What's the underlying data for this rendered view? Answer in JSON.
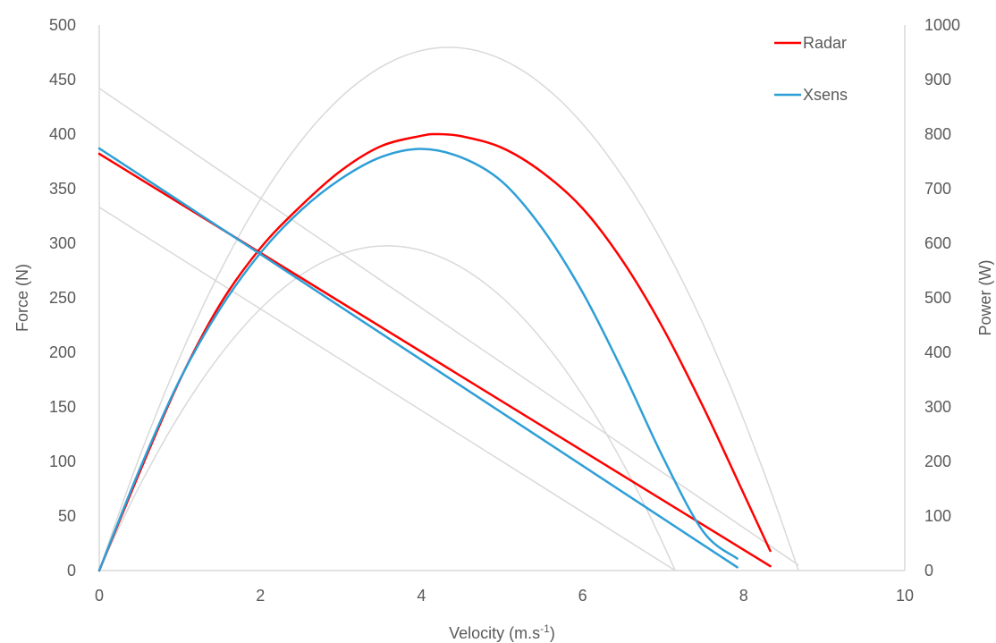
{
  "chart_data": {
    "type": "line",
    "title": "",
    "xlabel": "Velocity (m.s",
    "xlabel_sup": "-1",
    "xlabel_close": ")",
    "ylabel": "Force (N)",
    "y2label": "Power (W)",
    "xlim": [
      0,
      10
    ],
    "ylim": [
      0,
      500
    ],
    "y2lim": [
      0,
      1000
    ],
    "x_ticks": [
      "0",
      "2",
      "4",
      "6",
      "8",
      "10"
    ],
    "y_ticks": [
      "0",
      "50",
      "100",
      "150",
      "200",
      "250",
      "300",
      "350",
      "400",
      "450",
      "500"
    ],
    "y2_ticks": [
      "0",
      "100",
      "200",
      "300",
      "400",
      "500",
      "600",
      "700",
      "800",
      "900",
      "1000"
    ],
    "grid": false,
    "legend_position": "top-right",
    "colors": {
      "radar": "#ff0000",
      "xsens": "#2e9fd6",
      "reference": "#d9d9d9",
      "axis": "#d9d9d9",
      "text": "#595959"
    },
    "series": [
      {
        "name": "Radar",
        "kind": "force",
        "axis": "left",
        "color": "#ff0000",
        "x": [
          0,
          8.33
        ],
        "y": [
          382,
          4
        ]
      },
      {
        "name": "Radar",
        "kind": "power",
        "axis": "right",
        "color": "#ff0000",
        "x": [
          0,
          0.5,
          1,
          1.5,
          2,
          2.5,
          3,
          3.5,
          4,
          4.2,
          4.5,
          5,
          5.5,
          6,
          6.5,
          7,
          7.5,
          8,
          8.33
        ],
        "y": [
          0,
          180,
          349,
          488,
          591,
          668,
          733,
          778,
          797,
          800,
          796,
          775,
          730,
          664,
          567,
          444,
          299,
          141,
          36
        ]
      },
      {
        "name": "Xsens",
        "kind": "force",
        "axis": "left",
        "color": "#2e9fd6",
        "x": [
          0,
          7.92
        ],
        "y": [
          387,
          3
        ]
      },
      {
        "name": "Xsens",
        "kind": "power",
        "axis": "right",
        "color": "#2e9fd6",
        "x": [
          0,
          0.5,
          1,
          1.5,
          2,
          2.5,
          3,
          3.5,
          4,
          4.5,
          5,
          5.5,
          6,
          6.5,
          7,
          7.5,
          7.92
        ],
        "y": [
          0,
          185,
          350,
          480,
          582,
          660,
          718,
          758,
          773,
          757,
          713,
          627,
          510,
          365,
          207,
          71,
          22
        ]
      }
    ],
    "reference_curves": [
      {
        "kind": "force",
        "axis": "left",
        "x": [
          0,
          8.68
        ],
        "y": [
          442,
          5
        ]
      },
      {
        "kind": "force",
        "axis": "left",
        "x": [
          0,
          7.15
        ],
        "y": [
          333,
          0
        ]
      },
      {
        "kind": "power",
        "axis": "right",
        "fmax": 442,
        "vmax": 8.68
      },
      {
        "kind": "power",
        "axis": "right",
        "fmax": 333,
        "vmax": 7.15
      }
    ],
    "legend": [
      {
        "label": "Radar",
        "color": "#ff0000"
      },
      {
        "label": "Xsens",
        "color": "#2e9fd6"
      }
    ]
  }
}
